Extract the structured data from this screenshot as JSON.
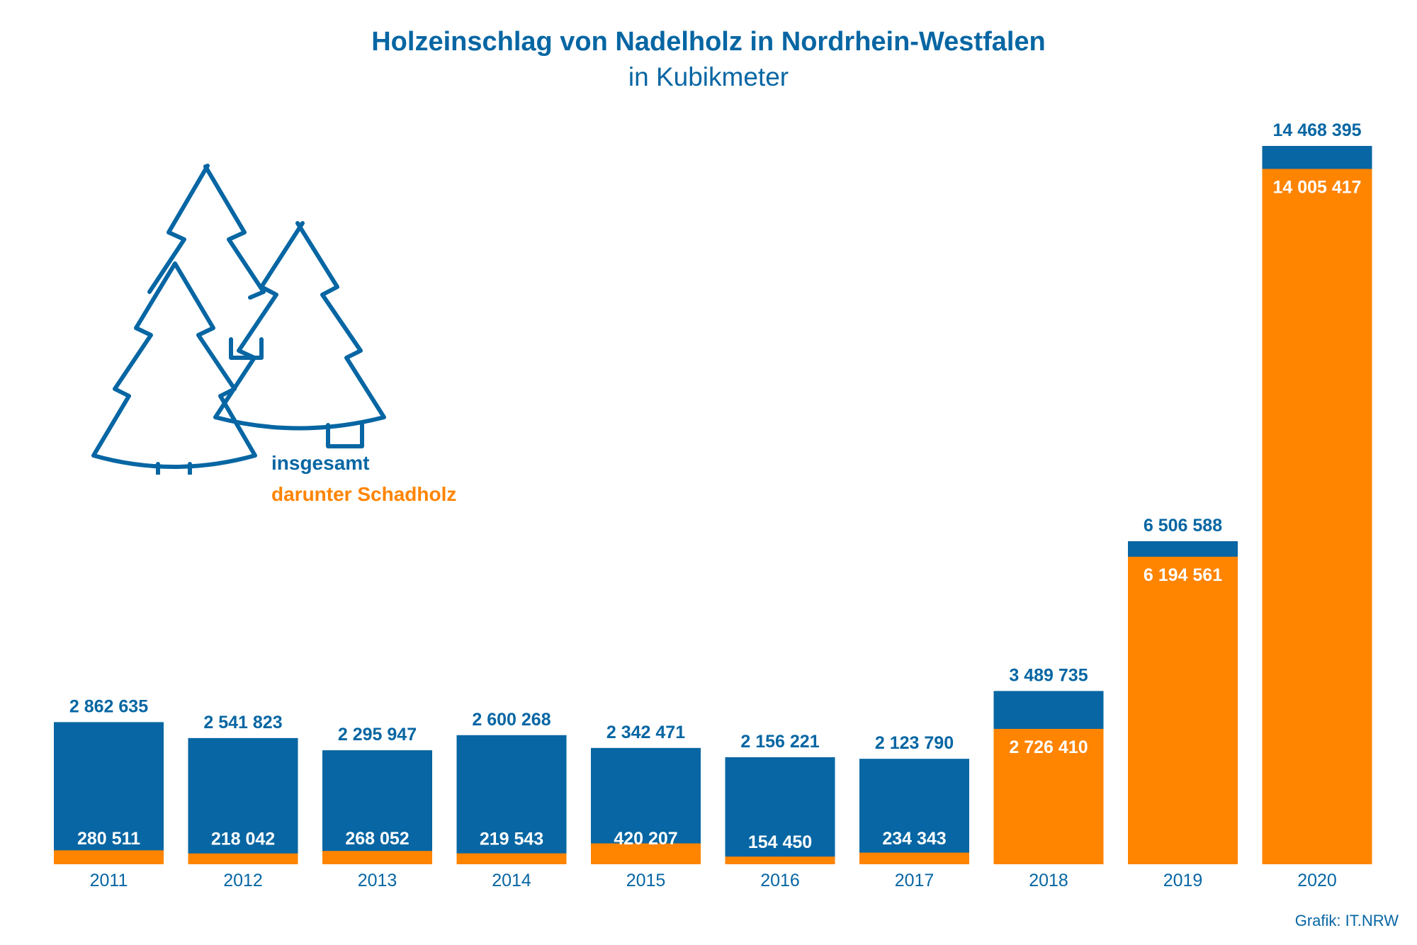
{
  "colors": {
    "total": "#0766a3",
    "schadholz": "#ff8400",
    "title": "#0766a3",
    "value_light": "#ffffff"
  },
  "icon": "conifer-trees-icon",
  "chart_data": {
    "type": "bar",
    "stacking": "overlay",
    "title": "Holzeinschlag von Nadelholz in Nordrhein-Westfalen",
    "subtitle": "in Kubikmeter",
    "xlabel": "",
    "ylabel": "",
    "categories": [
      "2011",
      "2012",
      "2013",
      "2014",
      "2015",
      "2016",
      "2017",
      "2018",
      "2019",
      "2020"
    ],
    "series": [
      {
        "name": "insgesamt",
        "values": [
          2862635,
          2541823,
          2295947,
          2600268,
          2342471,
          2156221,
          2123790,
          3489735,
          6506588,
          14468395
        ],
        "labels": [
          "2 862 635",
          "2 541 823",
          "2 295 947",
          "2 600 268",
          "2 342 471",
          "2 156 221",
          "2 123 790",
          "3 489 735",
          "6 506 588",
          "14 468 395"
        ]
      },
      {
        "name": "darunter Schadholz",
        "values": [
          280511,
          218042,
          268052,
          219543,
          420207,
          154450,
          234343,
          2726410,
          6194561,
          14005417
        ],
        "labels": [
          "280 511",
          "218 042",
          "268 052",
          "219 543",
          "420 207",
          "154 450",
          "234 343",
          "2 726 410",
          "6 194 561",
          "14 005 417"
        ]
      }
    ],
    "ylim": [
      0,
      14468395
    ],
    "grid": false,
    "legend": "top-left"
  },
  "source": "Grafik: IT.NRW"
}
